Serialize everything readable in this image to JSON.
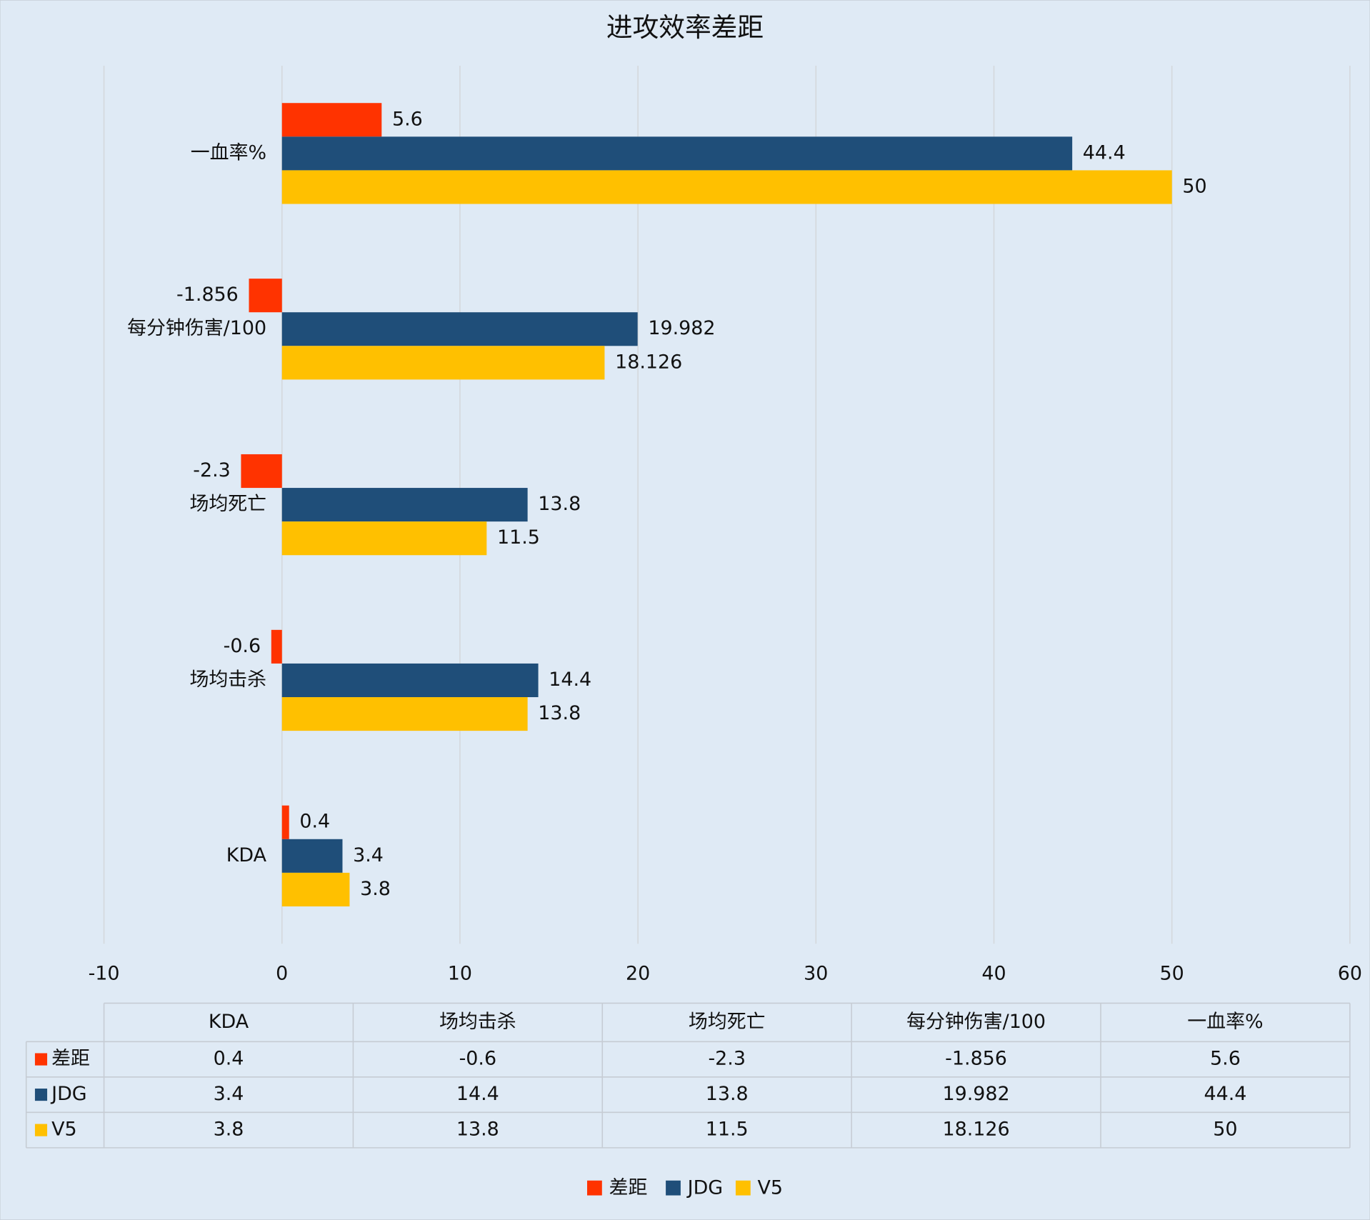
{
  "chart_data": {
    "type": "bar",
    "orientation": "horizontal",
    "title": "进攻效率差距",
    "categories": [
      "KDA",
      "场均击杀",
      "场均死亡",
      "每分钟伤害/100",
      "一血率%"
    ],
    "series": [
      {
        "name": "差距",
        "color": "#ff3300",
        "values": [
          0.4,
          -0.6,
          -2.3,
          -1.856,
          5.6
        ]
      },
      {
        "name": "JDG",
        "color": "#1f4e79",
        "values": [
          3.4,
          14.4,
          13.8,
          19.982,
          44.4
        ]
      },
      {
        "name": "V5",
        "color": "#ffc000",
        "values": [
          3.8,
          13.8,
          11.5,
          18.126,
          50
        ]
      }
    ],
    "xlim": [
      -10,
      60
    ],
    "xticks": [
      -10,
      0,
      10,
      20,
      30,
      40,
      50,
      60
    ],
    "grid": true,
    "legend": "bottom",
    "data_table": true
  }
}
